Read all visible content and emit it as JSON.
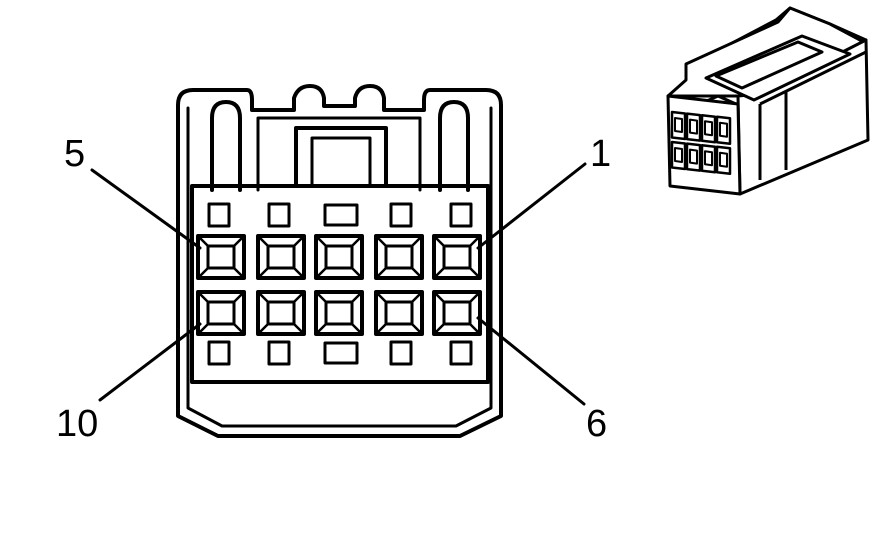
{
  "diagram": {
    "pin_labels": {
      "top_left": "5",
      "top_right": "1",
      "bottom_left": "10",
      "bottom_right": "6"
    },
    "colors": {
      "ink": "#000000",
      "paper": "#ffffff"
    }
  }
}
